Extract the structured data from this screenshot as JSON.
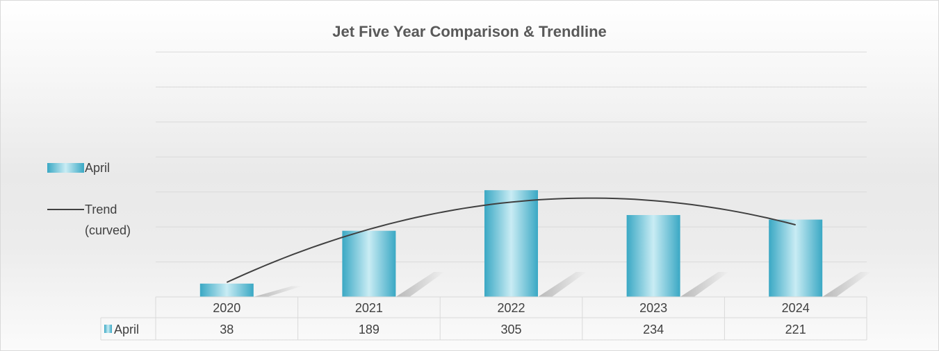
{
  "chart_data": {
    "type": "bar",
    "title": "Jet Five Year Comparison & Trendline",
    "categories": [
      "2020",
      "2021",
      "2022",
      "2023",
      "2024"
    ],
    "series": [
      {
        "name": "April",
        "values": [
          38,
          189,
          305,
          234,
          221
        ]
      }
    ],
    "trendline": {
      "name": "Trend (curved)",
      "type": "polynomial",
      "color": "#404040"
    },
    "data_table": {
      "row_label": "April"
    },
    "legend": {
      "position": "left",
      "items": [
        "April",
        "Trend (curved)"
      ]
    },
    "grid": true,
    "ylim": [
      0,
      700
    ],
    "colors": {
      "bar": "#3aa8c4",
      "bar_highlight": "#c9ecf4",
      "trend": "#404040",
      "grid": "#d9d9d9"
    }
  },
  "legend_labels": {
    "april": "April",
    "trend_line1": "Trend",
    "trend_line2": "(curved)"
  }
}
